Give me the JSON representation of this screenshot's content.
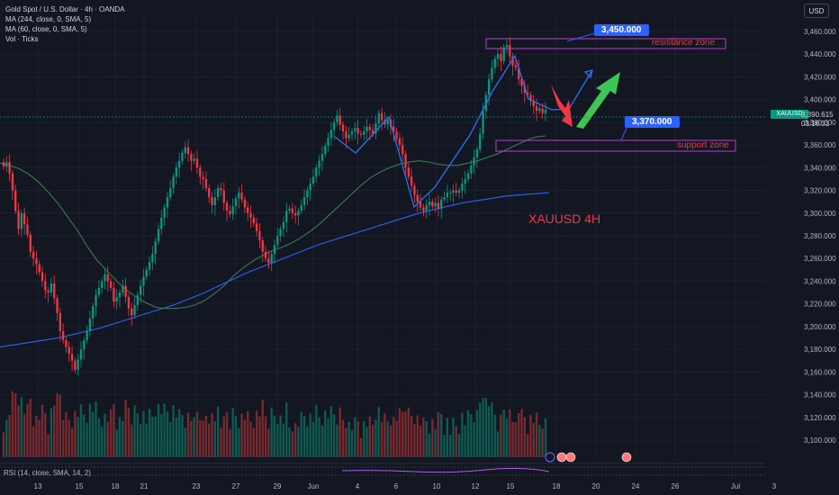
{
  "header": {
    "symbol_line": "Gold Spot / U.S. Dollar · 4h · OANDA",
    "ma1": "MA (244, close, 0, SMA, 5)",
    "ma2": "MA (60, close, 0, SMA, 5)",
    "vol": "Vol · Ticks",
    "currency": "USD"
  },
  "annotations": {
    "resistance_label": "resistance zone",
    "support_label": "support zone",
    "resistance_price": "3,450.000",
    "support_price": "3,370.000",
    "symbol_tf": "XAUUSD 4H"
  },
  "price_tag": {
    "symbol": "XAUUSD",
    "price": "3,390.615",
    "countdown": "03:16:31"
  },
  "rsi_label": "RSI (14, close, SMA, 14, 2)",
  "colors": {
    "up": "#089981",
    "down": "#f23645",
    "ma_slow": "#2962ff",
    "ma_fast": "#3d7a52",
    "zone": "#c039d6",
    "tag_blue": "#2962ff",
    "bg": "#131722"
  },
  "chart_data": {
    "type": "candlestick",
    "ylim": [
      3085,
      3475
    ],
    "y_ticks": [
      "3,460.000",
      "3,440.000",
      "3,420.000",
      "3,400.000",
      "3,380.000",
      "3,360.000",
      "3,340.000",
      "3,320.000",
      "3,300.000",
      "3,280.000",
      "3,260.000",
      "3,240.000",
      "3,220.000",
      "3,200.000",
      "3,180.000",
      "3,160.000",
      "3,140.000",
      "3,120.000",
      "3,100.000"
    ],
    "x_ticks": [
      "13",
      "15",
      "18",
      "21",
      "23",
      "27",
      "29",
      "Jun",
      "4",
      "6",
      "10",
      "12",
      "15",
      "18",
      "20",
      "24",
      "26",
      "Jul",
      "3"
    ],
    "closes": [
      3341,
      3345,
      3335,
      3320,
      3302,
      3286,
      3300,
      3290,
      3281,
      3266,
      3260,
      3255,
      3248,
      3240,
      3232,
      3230,
      3238,
      3225,
      3212,
      3196,
      3188,
      3182,
      3176,
      3170,
      3162,
      3171,
      3180,
      3188,
      3196,
      3207,
      3218,
      3228,
      3234,
      3240,
      3246,
      3240,
      3234,
      3222,
      3226,
      3230,
      3236,
      3226,
      3216,
      3210,
      3219,
      3228,
      3236,
      3244,
      3250,
      3257,
      3264,
      3275,
      3286,
      3296,
      3305,
      3314,
      3322,
      3332,
      3340,
      3346,
      3353,
      3358,
      3352,
      3346,
      3348,
      3340,
      3332,
      3330,
      3322,
      3314,
      3307,
      3314,
      3322,
      3320,
      3309,
      3302,
      3299,
      3306,
      3313,
      3318,
      3312,
      3305,
      3300,
      3296,
      3291,
      3284,
      3276,
      3266,
      3260,
      3256,
      3264,
      3272,
      3280,
      3286,
      3292,
      3302,
      3304,
      3300,
      3298,
      3302,
      3307,
      3314,
      3320,
      3326,
      3332,
      3340,
      3346,
      3352,
      3359,
      3366,
      3373,
      3380,
      3386,
      3378,
      3372,
      3366,
      3369,
      3372,
      3375,
      3370,
      3369,
      3372,
      3376,
      3373,
      3370,
      3379,
      3388,
      3382,
      3378,
      3382,
      3376,
      3372,
      3366,
      3360,
      3352,
      3340,
      3332,
      3324,
      3316,
      3310,
      3305,
      3302,
      3307,
      3310,
      3306,
      3309,
      3304,
      3312,
      3314,
      3318,
      3318,
      3320,
      3318,
      3320,
      3326,
      3330,
      3335,
      3342,
      3349,
      3356,
      3370,
      3390,
      3404,
      3418,
      3428,
      3436,
      3440,
      3434,
      3446,
      3448,
      3438,
      3430,
      3428,
      3418,
      3412,
      3406,
      3404,
      3399,
      3394,
      3390,
      3392,
      3388,
      3391
    ],
    "ma_slow": [
      3182,
      3184,
      3186,
      3188,
      3190,
      3193,
      3196,
      3199,
      3203,
      3207,
      3211,
      3215,
      3219,
      3224,
      3229,
      3235,
      3241,
      3247,
      3252,
      3257,
      3262,
      3267,
      3272,
      3276,
      3280,
      3284,
      3288,
      3292,
      3296,
      3300,
      3303,
      3306,
      3309,
      3311,
      3313,
      3315,
      3316,
      3317,
      3318
    ],
    "ma_fast": [
      3344,
      3342,
      3339,
      3334,
      3327,
      3318,
      3308,
      3296,
      3284,
      3270,
      3258,
      3249,
      3240,
      3232,
      3226,
      3221,
      3217,
      3216,
      3216,
      3217,
      3219,
      3223,
      3229,
      3236,
      3245,
      3252,
      3258,
      3263,
      3267,
      3270,
      3274,
      3279,
      3285,
      3292,
      3300,
      3308,
      3316,
      3324,
      3331,
      3336,
      3340,
      3343,
      3345,
      3346,
      3345,
      3343,
      3342,
      3342,
      3344,
      3346,
      3349,
      3352,
      3356,
      3360,
      3364,
      3367,
      3368
    ]
  }
}
